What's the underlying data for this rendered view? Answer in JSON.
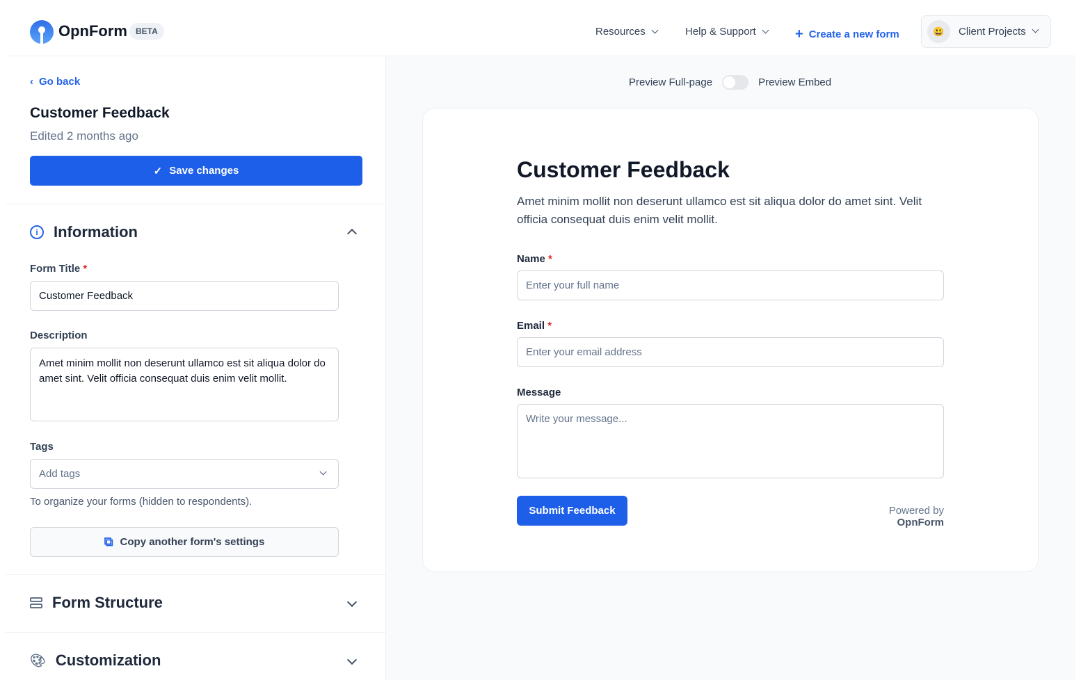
{
  "header": {
    "brand": "OpnForm",
    "badge": "BETA",
    "nav": [
      {
        "label": "Resources"
      },
      {
        "label": "Help & Support"
      }
    ],
    "create_label": "Create a new form",
    "workspace": {
      "emoji": "😃",
      "label": "Client Projects"
    }
  },
  "sidebar": {
    "go_back": "Go back",
    "form_title": "Customer Feedback",
    "edited": "Edited 2 months ago",
    "save_label": "Save changes",
    "information": {
      "title": "Information",
      "form_title_label": "Form Title",
      "required_mark": "*",
      "form_title_value": "Customer Feedback",
      "description_label": "Description",
      "description_value": "Amet minim mollit non deserunt ullamco est sit aliqua dolor do amet sint. Velit officia consequat duis enim velit mollit.",
      "tags_label": "Tags",
      "tags_placeholder": "Add tags",
      "tags_help": "To organize your forms (hidden to respondents).",
      "copy_label": "Copy another form's settings"
    },
    "sections": [
      {
        "title": "Form Structure",
        "icon": "rows-icon"
      },
      {
        "title": "Customization",
        "icon": "palette-icon"
      }
    ]
  },
  "preview": {
    "toggle_left": "Preview Full-page",
    "toggle_right": "Preview Embed",
    "toggle_on": false,
    "form": {
      "title": "Customer Feedback",
      "description": "Amet minim mollit non deserunt ullamco est sit aliqua dolor do amet sint. Velit officia consequat duis enim velit mollit.",
      "fields": [
        {
          "label": "Name",
          "required": "*",
          "placeholder": "Enter your full name"
        },
        {
          "label": "Email",
          "required": "*",
          "placeholder": "Enter your email address"
        },
        {
          "label": "Message",
          "placeholder": "Write your message..."
        }
      ],
      "submit_label": "Submit Feedback",
      "powered_prefix": "Powered by",
      "powered_brand": "OpnForm"
    }
  },
  "colors": {
    "accent": "#1d5fe8",
    "required": "#dc2626"
  }
}
